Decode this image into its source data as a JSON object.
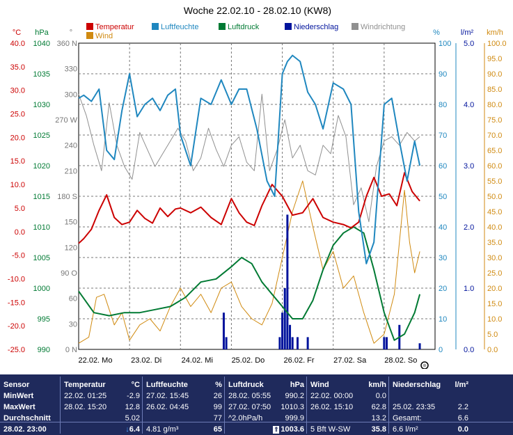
{
  "chart_data": {
    "type": "line",
    "title": "Woche 22.02.10 - 28.02.10 (KW8)",
    "x_days": [
      "22.02. Mo",
      "23.02. Di",
      "24.02. Mi",
      "25.02. Do",
      "26.02. Fr",
      "27.02. Sa",
      "28.02. So"
    ],
    "axes": {
      "temperature": {
        "unit": "°C",
        "range": [
          -25,
          40
        ],
        "ticks": [
          "40.0",
          "35.0",
          "30.0",
          "25.0",
          "20.0",
          "15.0",
          "10.0",
          "5.0",
          "0.0",
          "-5.0",
          "-10.0",
          "-15.0",
          "-20.0",
          "-25.0"
        ]
      },
      "pressure": {
        "unit": "hPa",
        "range": [
          990,
          1040
        ],
        "ticks": [
          "1040",
          "1035",
          "1030",
          "1025",
          "1020",
          "1015",
          "1010",
          "1005",
          "1000",
          "995",
          "990"
        ]
      },
      "direction": {
        "unit": "°",
        "range": [
          0,
          360
        ],
        "ticks": [
          "360 N",
          "330",
          "300",
          "270 W",
          "240",
          "210",
          "180 S",
          "150",
          "120",
          "90 O",
          "60",
          "30",
          "0 N"
        ]
      },
      "humidity": {
        "unit": "%",
        "range": [
          0,
          100
        ],
        "ticks": [
          "100",
          "90",
          "80",
          "70",
          "60",
          "50",
          "40",
          "30",
          "20",
          "10",
          "0"
        ]
      },
      "precipitation": {
        "unit": "l/m²",
        "range": [
          0,
          5
        ],
        "ticks": [
          "5.0",
          "4.0",
          "3.0",
          "2.0",
          "1.0",
          "0.0"
        ]
      },
      "wind": {
        "unit": "km/h",
        "range": [
          0,
          100
        ],
        "ticks": [
          "100.0",
          "95.0",
          "90.0",
          "85.0",
          "80.0",
          "75.0",
          "70.0",
          "65.0",
          "60.0",
          "55.0",
          "50.0",
          "45.0",
          "40.0",
          "35.0",
          "30.0",
          "25.0",
          "20.0",
          "15.0",
          "10.0",
          "5.0",
          "0.0"
        ]
      }
    },
    "legend": [
      {
        "name": "Temperatur",
        "color": "#cc0000"
      },
      {
        "name": "Luftfeuchte",
        "color": "#1f87bf"
      },
      {
        "name": "Luftdruck",
        "color": "#007a33"
      },
      {
        "name": "Niederschlag",
        "color": "#00139c"
      },
      {
        "name": "Windrichtung",
        "color": "#909090"
      },
      {
        "name": "Wind",
        "color": "#d08a10"
      }
    ],
    "series": [
      {
        "name": "Temperatur",
        "axis": "temperature",
        "x": [
          0,
          0.1,
          0.25,
          0.4,
          0.55,
          0.7,
          0.85,
          1.0,
          1.15,
          1.3,
          1.45,
          1.6,
          1.75,
          1.9,
          2.0,
          2.2,
          2.4,
          2.6,
          2.8,
          3.0,
          3.15,
          3.3,
          3.45,
          3.6,
          3.8,
          4.0,
          4.2,
          4.4,
          4.6,
          4.8,
          5.0,
          5.2,
          5.35,
          5.5,
          5.65,
          5.8,
          5.95,
          6.1,
          6.25,
          6.4,
          6.55,
          6.7
        ],
        "values": [
          -2.5,
          -1.5,
          0.5,
          4.5,
          7.8,
          3.0,
          1.5,
          2.0,
          4.5,
          2.8,
          1.8,
          5.0,
          3.2,
          4.8,
          5.0,
          4.0,
          5.2,
          3.0,
          1.5,
          7.0,
          4.0,
          2.0,
          1.3,
          5.5,
          10.0,
          7.5,
          3.5,
          4.0,
          7.0,
          3.0,
          2.0,
          1.5,
          0.8,
          2.0,
          7.5,
          11.5,
          7.5,
          8.0,
          5.5,
          12.5,
          8.5,
          6.5
        ]
      },
      {
        "name": "Luftfeuchte",
        "axis": "humidity",
        "x": [
          0,
          0.1,
          0.25,
          0.4,
          0.55,
          0.7,
          0.85,
          1.0,
          1.15,
          1.3,
          1.45,
          1.6,
          1.75,
          1.9,
          2.0,
          2.2,
          2.4,
          2.6,
          2.8,
          3.0,
          3.15,
          3.3,
          3.5,
          3.7,
          3.85,
          4.0,
          4.1,
          4.2,
          4.35,
          4.5,
          4.65,
          4.8,
          5.0,
          5.2,
          5.35,
          5.5,
          5.65,
          5.8,
          6.0,
          6.15,
          6.3,
          6.45,
          6.6,
          6.7
        ],
        "values": [
          82,
          83,
          81,
          85,
          65,
          62,
          78,
          90,
          76,
          80,
          82,
          78,
          83,
          85,
          70,
          60,
          82,
          80,
          88,
          80,
          85,
          85,
          72,
          55,
          50,
          90,
          94,
          96,
          94,
          84,
          80,
          72,
          87,
          85,
          80,
          45,
          28,
          35,
          80,
          82,
          68,
          55,
          68,
          60
        ]
      },
      {
        "name": "Luftdruck",
        "axis": "pressure",
        "x": [
          0,
          0.3,
          0.6,
          0.9,
          1.2,
          1.5,
          1.8,
          2.1,
          2.4,
          2.7,
          3.0,
          3.2,
          3.4,
          3.6,
          3.8,
          4.0,
          4.2,
          4.4,
          4.6,
          4.8,
          5.0,
          5.2,
          5.4,
          5.6,
          5.8,
          6.0,
          6.2,
          6.4,
          6.6,
          6.7
        ],
        "values": [
          999.5,
          996,
          995.5,
          996,
          996,
          996.5,
          997,
          998.5,
          1001,
          1001.5,
          1003.5,
          1005,
          1004,
          1001,
          999,
          997,
          995,
          995,
          998,
          1003,
          1007,
          1009,
          1010,
          1009,
          1003,
          996,
          991.5,
          992.5,
          996,
          999
        ]
      },
      {
        "name": "Wind",
        "axis": "wind",
        "x": [
          0,
          0.2,
          0.35,
          0.5,
          0.7,
          0.85,
          1.0,
          1.2,
          1.4,
          1.6,
          1.8,
          2.0,
          2.2,
          2.4,
          2.6,
          2.8,
          3.0,
          3.2,
          3.4,
          3.6,
          3.8,
          4.0,
          4.2,
          4.4,
          4.6,
          4.8,
          5.0,
          5.2,
          5.4,
          5.6,
          5.8,
          6.0,
          6.2,
          6.4,
          6.5,
          6.6,
          6.7
        ],
        "values": [
          2,
          4,
          17,
          18,
          8,
          12,
          3,
          8,
          10,
          6,
          14,
          20,
          14,
          18,
          12,
          20,
          22,
          14,
          10,
          8,
          15,
          30,
          45,
          55,
          40,
          26,
          32,
          20,
          24,
          12,
          2,
          5,
          18,
          52,
          35,
          25,
          32
        ]
      },
      {
        "name": "Windrichtung",
        "axis": "direction",
        "x": [
          0,
          0.15,
          0.3,
          0.45,
          0.6,
          0.75,
          0.9,
          1.05,
          1.2,
          1.35,
          1.5,
          1.65,
          1.8,
          1.95,
          2.1,
          2.25,
          2.4,
          2.55,
          2.7,
          2.85,
          3.0,
          3.15,
          3.3,
          3.45,
          3.6,
          3.75,
          3.9,
          4.05,
          4.2,
          4.35,
          4.5,
          4.65,
          4.8,
          4.95,
          5.1,
          5.25,
          5.4,
          5.55,
          5.7,
          5.85,
          6.0,
          6.15,
          6.3,
          6.45,
          6.6,
          6.7
        ],
        "values": [
          300,
          275,
          240,
          210,
          290,
          240,
          215,
          200,
          255,
          235,
          215,
          230,
          245,
          260,
          245,
          210,
          225,
          260,
          235,
          215,
          240,
          250,
          220,
          210,
          300,
          210,
          235,
          270,
          225,
          240,
          210,
          205,
          240,
          230,
          275,
          250,
          170,
          190,
          150,
          215,
          245,
          250,
          240,
          255,
          245,
          250
        ]
      },
      {
        "name": "Niederschlag",
        "axis": "precipitation",
        "type": "bar",
        "x": [
          2.85,
          2.9,
          3.95,
          4.0,
          4.05,
          4.1,
          4.15,
          4.2,
          4.3,
          4.5,
          6.0,
          6.05,
          6.3,
          6.7
        ],
        "values": [
          0.6,
          0.2,
          0.2,
          0.6,
          1.0,
          2.2,
          0.4,
          0.2,
          0.2,
          0.2,
          0.2,
          0.2,
          0.4,
          0.1
        ]
      }
    ]
  },
  "summary": {
    "headers": {
      "sensor": "Sensor",
      "temp": "Temperatur",
      "temp_unit": "°C",
      "hum": "Luftfeuchte",
      "hum_unit": "%",
      "press": "Luftdruck",
      "press_unit": "hPa",
      "wind": "Wind",
      "wind_unit": "km/h",
      "rain": "Niederschlag",
      "rain_unit": "l/m²"
    },
    "labels": {
      "min": "MinWert",
      "max": "MaxWert",
      "avg": "Durchschnitt",
      "current": "28.02. 23:00"
    },
    "temp": {
      "min_time": "22.02. 01:25",
      "min": "-2.9",
      "max_time": "28.02. 15:20",
      "max": "12.8",
      "avg": "5.02",
      "current": "6.4"
    },
    "hum": {
      "min_time": "27.02. 15:45",
      "min": "26",
      "max_time": "26.02. 04:45",
      "max": "99",
      "avg": "77",
      "abs": "4.81 g/m³",
      "current": "65"
    },
    "press": {
      "min_time": "28.02. 05:55",
      "min": "990.2",
      "max_time": "27.02. 07:50",
      "max": "1010.3",
      "trend": "^2.0hPa/h",
      "avg": "999.9",
      "current": "1003.6"
    },
    "wind": {
      "min_time": "22.02. 00:00",
      "min": "0.0",
      "max_time": "26.02. 15:10",
      "max": "62.8",
      "avg": "13.2",
      "beaufort": "5 Bft W-SW",
      "current": "35.8"
    },
    "rain": {
      "max_time": "25.02. 23:35",
      "max": "2.2",
      "total_label": "Gesamt:",
      "total": "6.6",
      "day": "6.6 l/m²",
      "current": "0.0"
    }
  }
}
